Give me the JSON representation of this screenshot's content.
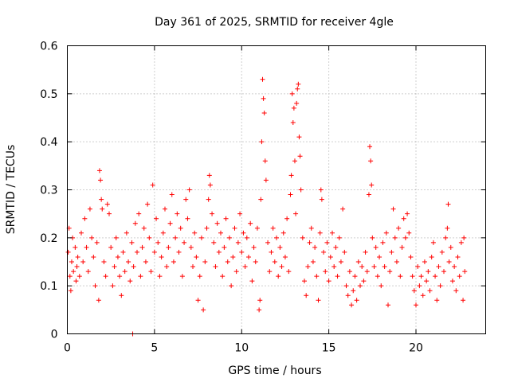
{
  "chart_data": {
    "type": "scatter",
    "title": "Day 361 of 2025, SRMTID for receiver 4gle",
    "xlabel": "GPS time / hours",
    "ylabel": "SRMTID / TECUs",
    "xlim": [
      0,
      24
    ],
    "ylim": [
      0,
      0.6
    ],
    "xticks": [
      "0",
      "5",
      "10",
      "15",
      "20"
    ],
    "xtick_values": [
      0,
      5,
      10,
      15,
      20
    ],
    "yticks": [
      "0",
      "0.1",
      "0.2",
      "0.3",
      "0.4",
      "0.5",
      "0.6"
    ],
    "ytick_values": [
      0,
      0.1,
      0.2,
      0.3,
      0.4,
      0.5,
      0.6
    ],
    "grid": true,
    "marker": "+",
    "color": "#ff0000",
    "series": [
      {
        "name": "SRMTID",
        "points": [
          [
            0.05,
            0.17
          ],
          [
            0.1,
            0.22
          ],
          [
            0.15,
            0.12
          ],
          [
            0.2,
            0.09
          ],
          [
            0.25,
            0.15
          ],
          [
            0.3,
            0.2
          ],
          [
            0.35,
            0.13
          ],
          [
            0.45,
            0.18
          ],
          [
            0.5,
            0.11
          ],
          [
            0.55,
            0.14
          ],
          [
            0.6,
            0.16
          ],
          [
            0.7,
            0.12
          ],
          [
            0.8,
            0.21
          ],
          [
            0.9,
            0.15
          ],
          [
            1.0,
            0.24
          ],
          [
            1.1,
            0.18
          ],
          [
            1.2,
            0.13
          ],
          [
            1.3,
            0.26
          ],
          [
            1.4,
            0.2
          ],
          [
            1.5,
            0.16
          ],
          [
            1.6,
            0.1
          ],
          [
            1.7,
            0.19
          ],
          [
            1.8,
            0.07
          ],
          [
            1.85,
            0.34
          ],
          [
            1.9,
            0.32
          ],
          [
            1.95,
            0.28
          ],
          [
            2.0,
            0.26
          ],
          [
            2.1,
            0.15
          ],
          [
            2.2,
            0.12
          ],
          [
            2.3,
            0.27
          ],
          [
            2.4,
            0.25
          ],
          [
            2.5,
            0.18
          ],
          [
            2.6,
            0.1
          ],
          [
            2.7,
            0.14
          ],
          [
            2.8,
            0.2
          ],
          [
            2.9,
            0.16
          ],
          [
            3.0,
            0.12
          ],
          [
            3.1,
            0.08
          ],
          [
            3.2,
            0.17
          ],
          [
            3.3,
            0.13
          ],
          [
            3.4,
            0.21
          ],
          [
            3.5,
            0.15
          ],
          [
            3.6,
            0.11
          ],
          [
            3.7,
            0.19
          ],
          [
            3.75,
            0.0
          ],
          [
            3.8,
            0.14
          ],
          [
            3.9,
            0.23
          ],
          [
            4.0,
            0.17
          ],
          [
            4.1,
            0.25
          ],
          [
            4.2,
            0.12
          ],
          [
            4.3,
            0.18
          ],
          [
            4.4,
            0.22
          ],
          [
            4.5,
            0.15
          ],
          [
            4.6,
            0.27
          ],
          [
            4.7,
            0.2
          ],
          [
            4.8,
            0.13
          ],
          [
            4.9,
            0.31
          ],
          [
            5.0,
            0.17
          ],
          [
            5.1,
            0.24
          ],
          [
            5.2,
            0.19
          ],
          [
            5.3,
            0.12
          ],
          [
            5.4,
            0.16
          ],
          [
            5.5,
            0.21
          ],
          [
            5.6,
            0.26
          ],
          [
            5.7,
            0.14
          ],
          [
            5.8,
            0.18
          ],
          [
            5.9,
            0.23
          ],
          [
            6.0,
            0.29
          ],
          [
            6.1,
            0.15
          ],
          [
            6.2,
            0.2
          ],
          [
            6.3,
            0.25
          ],
          [
            6.4,
            0.17
          ],
          [
            6.5,
            0.22
          ],
          [
            6.6,
            0.12
          ],
          [
            6.7,
            0.19
          ],
          [
            6.8,
            0.28
          ],
          [
            6.9,
            0.24
          ],
          [
            7.0,
            0.3
          ],
          [
            7.1,
            0.18
          ],
          [
            7.2,
            0.14
          ],
          [
            7.3,
            0.21
          ],
          [
            7.4,
            0.16
          ],
          [
            7.5,
            0.07
          ],
          [
            7.6,
            0.12
          ],
          [
            7.7,
            0.2
          ],
          [
            7.8,
            0.05
          ],
          [
            7.9,
            0.15
          ],
          [
            8.0,
            0.22
          ],
          [
            8.1,
            0.28
          ],
          [
            8.15,
            0.33
          ],
          [
            8.2,
            0.31
          ],
          [
            8.3,
            0.25
          ],
          [
            8.4,
            0.19
          ],
          [
            8.5,
            0.14
          ],
          [
            8.6,
            0.23
          ],
          [
            8.7,
            0.17
          ],
          [
            8.8,
            0.21
          ],
          [
            8.9,
            0.12
          ],
          [
            9.0,
            0.18
          ],
          [
            9.1,
            0.24
          ],
          [
            9.2,
            0.15
          ],
          [
            9.3,
            0.2
          ],
          [
            9.4,
            0.1
          ],
          [
            9.5,
            0.16
          ],
          [
            9.6,
            0.22
          ],
          [
            9.7,
            0.13
          ],
          [
            9.8,
            0.19
          ],
          [
            9.9,
            0.25
          ],
          [
            10.0,
            0.17
          ],
          [
            10.1,
            0.21
          ],
          [
            10.2,
            0.14
          ],
          [
            10.3,
            0.2
          ],
          [
            10.4,
            0.16
          ],
          [
            10.5,
            0.23
          ],
          [
            10.6,
            0.11
          ],
          [
            10.7,
            0.18
          ],
          [
            10.8,
            0.15
          ],
          [
            10.9,
            0.22
          ],
          [
            11.0,
            0.05
          ],
          [
            11.05,
            0.07
          ],
          [
            11.1,
            0.28
          ],
          [
            11.15,
            0.4
          ],
          [
            11.2,
            0.53
          ],
          [
            11.25,
            0.49
          ],
          [
            11.3,
            0.46
          ],
          [
            11.35,
            0.36
          ],
          [
            11.4,
            0.32
          ],
          [
            11.5,
            0.19
          ],
          [
            11.6,
            0.13
          ],
          [
            11.7,
            0.17
          ],
          [
            11.8,
            0.22
          ],
          [
            11.9,
            0.15
          ],
          [
            12.0,
            0.2
          ],
          [
            12.1,
            0.12
          ],
          [
            12.2,
            0.18
          ],
          [
            12.3,
            0.14
          ],
          [
            12.4,
            0.21
          ],
          [
            12.5,
            0.16
          ],
          [
            12.6,
            0.24
          ],
          [
            12.7,
            0.13
          ],
          [
            12.8,
            0.29
          ],
          [
            12.85,
            0.33
          ],
          [
            12.9,
            0.5
          ],
          [
            12.95,
            0.44
          ],
          [
            13.0,
            0.47
          ],
          [
            13.05,
            0.36
          ],
          [
            13.1,
            0.25
          ],
          [
            13.15,
            0.48
          ],
          [
            13.2,
            0.51
          ],
          [
            13.25,
            0.52
          ],
          [
            13.3,
            0.41
          ],
          [
            13.35,
            0.37
          ],
          [
            13.4,
            0.3
          ],
          [
            13.5,
            0.2
          ],
          [
            13.6,
            0.11
          ],
          [
            13.7,
            0.08
          ],
          [
            13.8,
            0.14
          ],
          [
            13.9,
            0.19
          ],
          [
            14.0,
            0.22
          ],
          [
            14.1,
            0.15
          ],
          [
            14.2,
            0.18
          ],
          [
            14.3,
            0.12
          ],
          [
            14.4,
            0.07
          ],
          [
            14.5,
            0.21
          ],
          [
            14.55,
            0.3
          ],
          [
            14.6,
            0.28
          ],
          [
            14.7,
            0.17
          ],
          [
            14.8,
            0.13
          ],
          [
            14.9,
            0.19
          ],
          [
            15.0,
            0.11
          ],
          [
            15.1,
            0.16
          ],
          [
            15.2,
            0.21
          ],
          [
            15.3,
            0.14
          ],
          [
            15.4,
            0.18
          ],
          [
            15.5,
            0.12
          ],
          [
            15.6,
            0.2
          ],
          [
            15.7,
            0.15
          ],
          [
            15.8,
            0.26
          ],
          [
            15.9,
            0.17
          ],
          [
            16.0,
            0.1
          ],
          [
            16.1,
            0.08
          ],
          [
            16.2,
            0.13
          ],
          [
            16.3,
            0.06
          ],
          [
            16.4,
            0.09
          ],
          [
            16.5,
            0.12
          ],
          [
            16.6,
            0.07
          ],
          [
            16.7,
            0.15
          ],
          [
            16.8,
            0.1
          ],
          [
            16.9,
            0.14
          ],
          [
            17.0,
            0.11
          ],
          [
            17.1,
            0.17
          ],
          [
            17.2,
            0.13
          ],
          [
            17.3,
            0.29
          ],
          [
            17.35,
            0.39
          ],
          [
            17.4,
            0.36
          ],
          [
            17.45,
            0.31
          ],
          [
            17.5,
            0.2
          ],
          [
            17.6,
            0.14
          ],
          [
            17.7,
            0.18
          ],
          [
            17.8,
            0.12
          ],
          [
            17.9,
            0.16
          ],
          [
            18.0,
            0.1
          ],
          [
            18.1,
            0.19
          ],
          [
            18.2,
            0.14
          ],
          [
            18.3,
            0.21
          ],
          [
            18.4,
            0.06
          ],
          [
            18.5,
            0.13
          ],
          [
            18.6,
            0.17
          ],
          [
            18.7,
            0.26
          ],
          [
            18.8,
            0.2
          ],
          [
            18.9,
            0.15
          ],
          [
            19.0,
            0.22
          ],
          [
            19.1,
            0.12
          ],
          [
            19.2,
            0.18
          ],
          [
            19.3,
            0.24
          ],
          [
            19.4,
            0.2
          ],
          [
            19.5,
            0.25
          ],
          [
            19.6,
            0.21
          ],
          [
            19.7,
            0.16
          ],
          [
            19.8,
            0.12
          ],
          [
            19.9,
            0.09
          ],
          [
            20.0,
            0.06
          ],
          [
            20.1,
            0.14
          ],
          [
            20.2,
            0.1
          ],
          [
            20.3,
            0.12
          ],
          [
            20.4,
            0.08
          ],
          [
            20.5,
            0.15
          ],
          [
            20.6,
            0.11
          ],
          [
            20.7,
            0.13
          ],
          [
            20.8,
            0.09
          ],
          [
            20.9,
            0.16
          ],
          [
            21.0,
            0.19
          ],
          [
            21.1,
            0.12
          ],
          [
            21.2,
            0.07
          ],
          [
            21.3,
            0.14
          ],
          [
            21.4,
            0.1
          ],
          [
            21.5,
            0.17
          ],
          [
            21.6,
            0.13
          ],
          [
            21.7,
            0.2
          ],
          [
            21.8,
            0.22
          ],
          [
            21.85,
            0.27
          ],
          [
            21.9,
            0.15
          ],
          [
            22.0,
            0.18
          ],
          [
            22.1,
            0.11
          ],
          [
            22.2,
            0.14
          ],
          [
            22.3,
            0.09
          ],
          [
            22.4,
            0.16
          ],
          [
            22.5,
            0.12
          ],
          [
            22.6,
            0.19
          ],
          [
            22.7,
            0.07
          ],
          [
            22.75,
            0.2
          ],
          [
            22.8,
            0.13
          ]
        ]
      }
    ]
  }
}
